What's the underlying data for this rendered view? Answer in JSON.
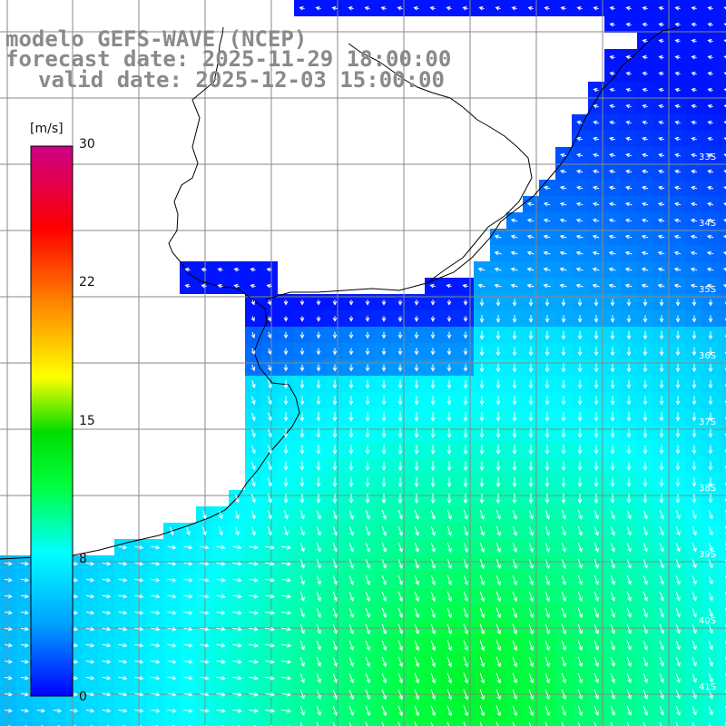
{
  "title": {
    "model": "modelo GEFS-WAVE (NCEP)",
    "forecast": "forecast date: 2025-11-29 18:00:00",
    "valid": "valid date: 2025-12-03 15:00:00"
  },
  "colorbar": {
    "unit": "[m/s]",
    "ticks": [
      "30",
      "22",
      "15",
      "8",
      "0"
    ],
    "min": 0,
    "max": 30,
    "colors": [
      "#0000ff",
      "#00a0ff",
      "#00ffff",
      "#00ff40",
      "#00dd00",
      "#ffff00",
      "#ff8000",
      "#ff0000",
      "#cc0088"
    ]
  },
  "latitude_labels": [
    "33S",
    "34S",
    "35S",
    "36S",
    "37S",
    "38S",
    "39S",
    "40S",
    "41S"
  ],
  "colors": {
    "land": "#ffffff",
    "grid": "#888888",
    "coast": "#000000",
    "arrow": "#ffffff",
    "title": "#8a8a8a"
  }
}
